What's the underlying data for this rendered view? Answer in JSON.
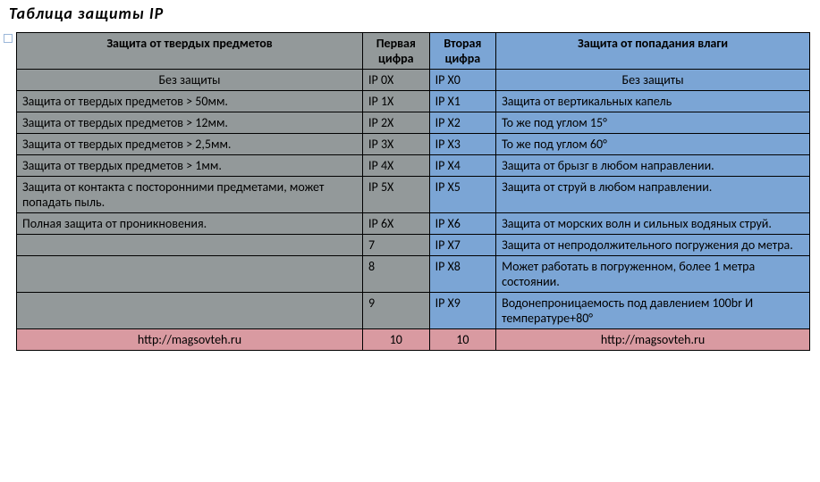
{
  "title": "Таблица  защиты  IP",
  "colors": {
    "left_bg": "#93999a",
    "right_bg": "#7ba5d5",
    "footer_bg": "#d99aa1",
    "border": "#000000",
    "text": "#000000"
  },
  "header": {
    "left": "Защита от твердых предметов",
    "first_digit": "Первая цифра",
    "second_digit": "Вторая цифра",
    "right": "Защита от попадания влаги"
  },
  "rows": [
    {
      "left": "Без защиты",
      "c1": "IP 0X",
      "c2": "IP X0",
      "right": "Без защиты",
      "left_center": true,
      "right_center": true
    },
    {
      "left": "Защита от твердых предметов > 50мм.",
      "c1": "IP 1X",
      "c2": "IP X1",
      "right": "Защита от вертикальных капель"
    },
    {
      "left": "Защита от твердых предметов > 12мм.",
      "c1": "IP 2X",
      "c2": "IP X2",
      "right": "То же под углом 15°"
    },
    {
      "left": "Защита от твердых предметов > 2,5мм.",
      "c1": "IP 3X",
      "c2": "IP X3",
      "right": "То же под углом 60°"
    },
    {
      "left": "Защита от твердых предметов > 1мм.",
      "c1": "IP 4X",
      "c2": "IP X4",
      "right": "Защита от брызг в любом направлении."
    },
    {
      "left": "Защита от контакта с посторонними предметами, может попадать пыль.",
      "c1": "IP 5X",
      "c2": "IP X5",
      "right": "Защита от струй в любом направлении."
    },
    {
      "left": "Полная защита от проникновения.",
      "c1": "IP 6X",
      "c2": "IP X6",
      "right": "Защита от морских волн и сильных водяных струй."
    },
    {
      "left": "",
      "c1": "7",
      "c2": "IP X7",
      "right": "Защита от непродолжительного погружения до метра."
    },
    {
      "left": "",
      "c1": "8",
      "c2": "IP X8",
      "right": "Может работать в погруженном, более 1 метра состоянии."
    },
    {
      "left": "",
      "c1": "9",
      "c2": "IP X9",
      "right": "Водонепроницаемость под давлением 100br И температуре+80°"
    }
  ],
  "footer": {
    "left": "http://magsovteh.ru",
    "c1": "10",
    "c2": "10",
    "right": "http://magsovteh.ru"
  }
}
